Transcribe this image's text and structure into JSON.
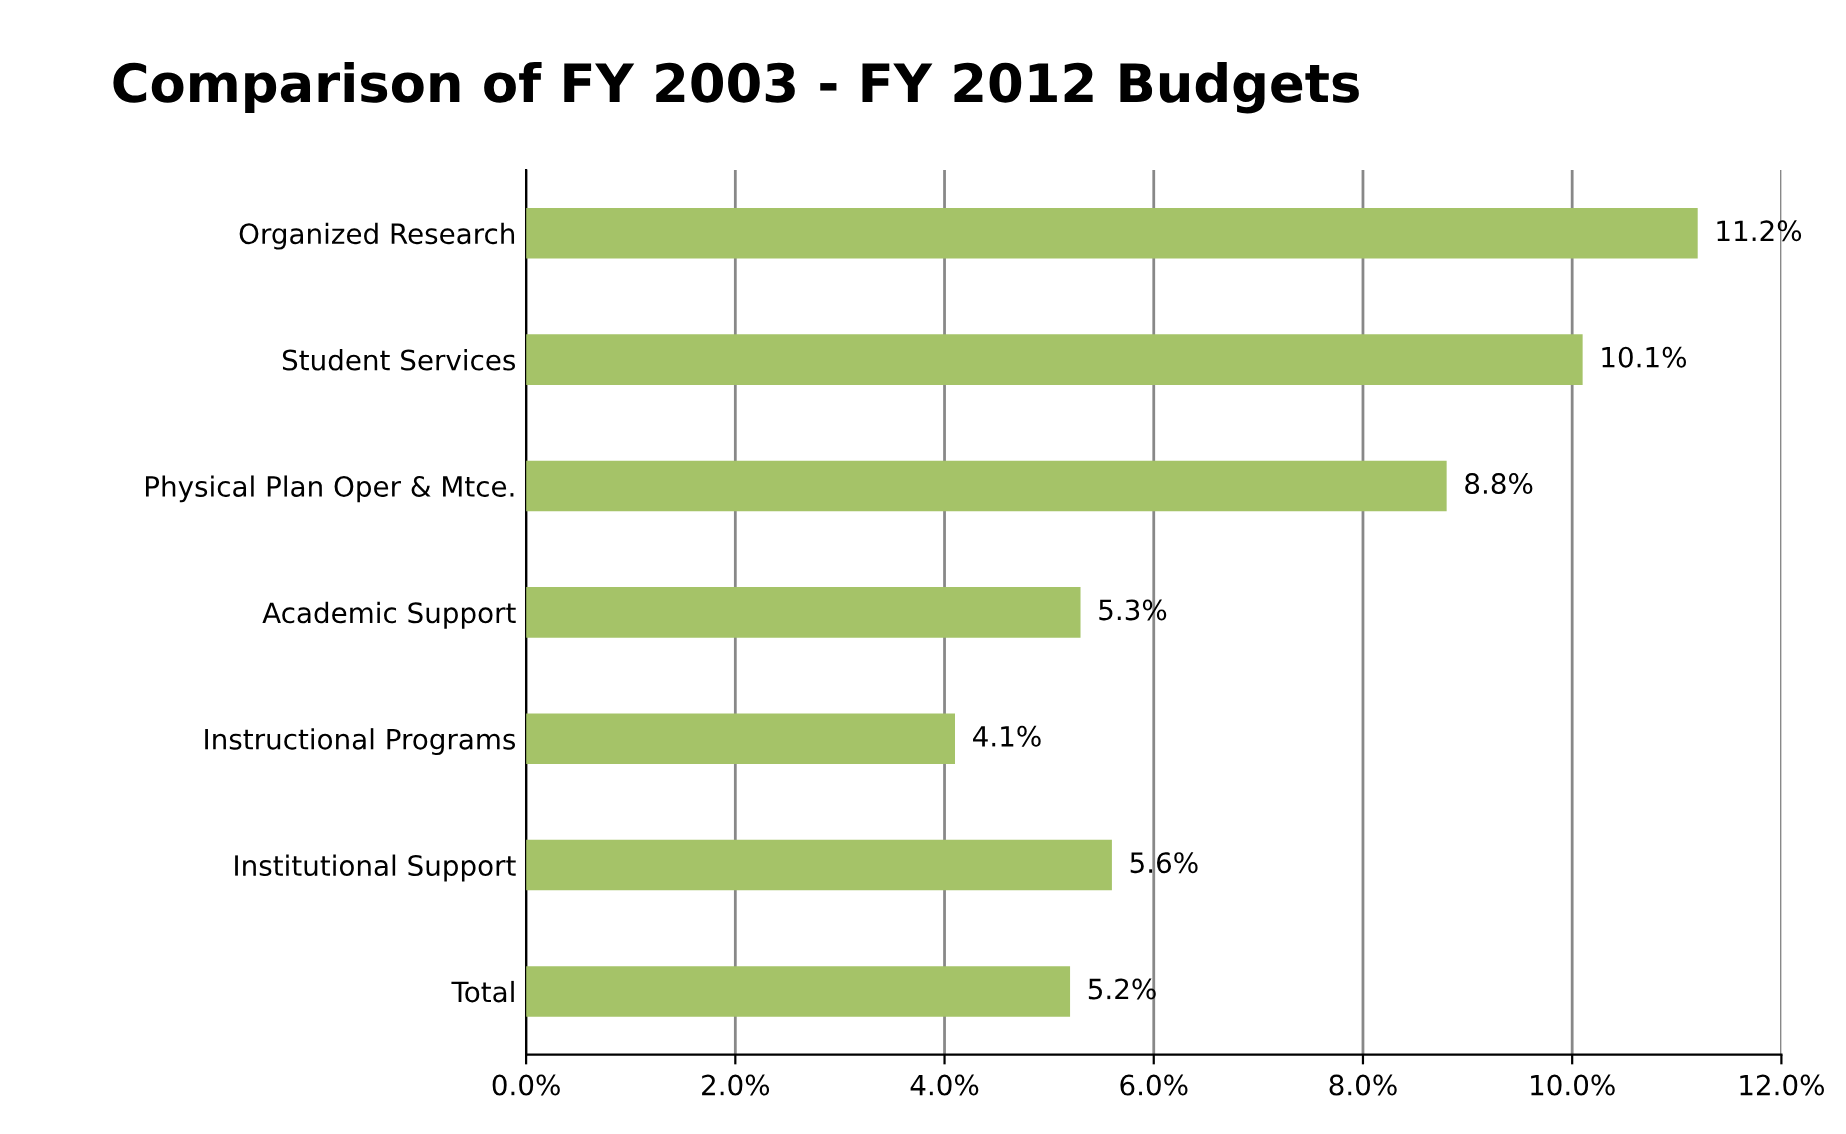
{
  "chart_data": {
    "type": "bar",
    "orientation": "horizontal",
    "title": "Comparison of FY 2003 - FY 2012 Budgets",
    "categories": [
      "Organized Research",
      "Student Services",
      "Physical Plan Oper & Mtce.",
      "Academic Support",
      "Instructional Programs",
      "Institutional Support",
      "Total"
    ],
    "values": [
      11.2,
      10.1,
      8.8,
      5.3,
      4.1,
      5.6,
      5.2
    ],
    "value_labels": [
      "11.2%",
      "10.1%",
      "8.8%",
      "5.3%",
      "4.1%",
      "5.6%",
      "5.2%"
    ],
    "color": "#a5c368",
    "xlim": [
      0,
      12
    ],
    "xticks": [
      {
        "value": 0,
        "label": "0.0%"
      },
      {
        "value": 2,
        "label": "2.0%"
      },
      {
        "value": 4,
        "label": "4.0%"
      },
      {
        "value": 6,
        "label": "6.0%"
      },
      {
        "value": 8,
        "label": "8.0%"
      },
      {
        "value": 10,
        "label": "10.0%"
      },
      {
        "value": 12,
        "label": "12.0%"
      }
    ],
    "grid": "x",
    "legend": false
  }
}
